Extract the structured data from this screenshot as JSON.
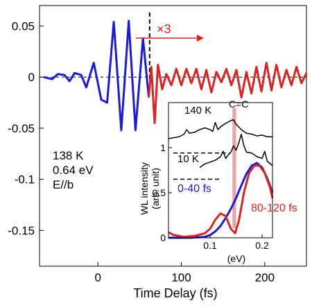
{
  "chart_data": [
    {
      "id": "main",
      "type": "line",
      "xlabel": "Time Delay (fs)",
      "ylabel": "",
      "xlim": [
        -70,
        250
      ],
      "ylim": [
        -0.185,
        0.07
      ],
      "xticks": [
        0,
        100,
        200
      ],
      "yticks": [
        0.05,
        0,
        -0.05,
        -0.1,
        -0.15
      ],
      "ytick_labels": [
        "0.05",
        "0",
        "-0.05",
        "-0.1",
        "-0.15"
      ],
      "zero_line": "dashed",
      "divider_x": 62,
      "divider_style": "dashed",
      "scale_label": "×3",
      "annotation_lines": [
        "138 K",
        "0.64 eV",
        "E//b"
      ],
      "colors": {
        "blue": "#1a1adc",
        "red": "#dd2222",
        "black": "#000000"
      },
      "series": [
        {
          "color": "blue",
          "points": [
            [
              -65,
              0
            ],
            [
              -55,
              -0.002
            ],
            [
              -48,
              0.003
            ],
            [
              -40,
              0.002
            ],
            [
              -34,
              -0.004
            ],
            [
              -28,
              0.004
            ],
            [
              -20,
              0.002
            ],
            [
              -14,
              -0.01
            ],
            [
              -5,
              0.014
            ],
            [
              4,
              -0.022
            ],
            [
              11,
              -0.025
            ],
            [
              19,
              0.054
            ],
            [
              28,
              -0.052
            ],
            [
              37,
              0.055
            ],
            [
              45,
              -0.052
            ],
            [
              54,
              0.038
            ],
            [
              61,
              -0.02
            ]
          ]
        },
        {
          "color": "red",
          "points": [
            [
              61,
              -0.02
            ],
            [
              64,
              0.01
            ],
            [
              68,
              -0.045
            ],
            [
              72,
              0.012
            ],
            [
              77,
              -0.012
            ],
            [
              82,
              0.003
            ],
            [
              88,
              -0.008
            ],
            [
              94,
              0.008
            ],
            [
              100,
              -0.008
            ],
            [
              106,
              0.008
            ],
            [
              112,
              -0.006
            ],
            [
              118,
              0.008
            ],
            [
              124,
              -0.012
            ],
            [
              130,
              0.007
            ],
            [
              136,
              -0.015
            ],
            [
              142,
              0.005
            ],
            [
              148,
              -0.005
            ],
            [
              154,
              0.008
            ],
            [
              160,
              -0.008
            ],
            [
              166,
              0.007
            ],
            [
              172,
              -0.02
            ],
            [
              178,
              0.005
            ],
            [
              184,
              -0.016
            ],
            [
              190,
              0.01
            ],
            [
              196,
              -0.014
            ],
            [
              202,
              0.014
            ],
            [
              208,
              -0.013
            ],
            [
              214,
              0.012
            ],
            [
              220,
              -0.01
            ],
            [
              226,
              0.007
            ],
            [
              232,
              -0.008
            ],
            [
              238,
              0.01
            ],
            [
              244,
              -0.006
            ],
            [
              250,
              0.004
            ]
          ]
        }
      ]
    },
    {
      "id": "inset",
      "type": "line",
      "xlabel": "(eV)",
      "ylabel_lines": [
        "WL intensity",
        "(arb. unit)"
      ],
      "xlim": [
        0.02,
        0.22
      ],
      "ylim": [
        0,
        1.5
      ],
      "xticks": [
        0.1,
        0.2
      ],
      "yticks": [
        0,
        0.5,
        1
      ],
      "ytick_labels": [
        "0",
        "0.5",
        "1"
      ],
      "highlight_x": [
        0.143,
        0.15
      ],
      "highlight_label": "C=C",
      "dashed_refs": [
        0.94,
        0.65
      ],
      "labels": [
        {
          "text": "140 K",
          "color": "black"
        },
        {
          "text": "10 K",
          "color": "black"
        },
        {
          "text": "0-40 fs",
          "color": "blue"
        },
        {
          "text": "80-120 fs",
          "color": "red"
        }
      ],
      "series": [
        {
          "name": "140 K",
          "color": "black",
          "points": [
            [
              0.02,
              1.1
            ],
            [
              0.04,
              1.12
            ],
            [
              0.05,
              1.15
            ],
            [
              0.055,
              1.2
            ],
            [
              0.06,
              1.16
            ],
            [
              0.07,
              1.17
            ],
            [
              0.08,
              1.2
            ],
            [
              0.09,
              1.22
            ],
            [
              0.1,
              1.2
            ],
            [
              0.105,
              1.18
            ],
            [
              0.11,
              1.28
            ],
            [
              0.115,
              1.2
            ],
            [
              0.12,
              1.23
            ],
            [
              0.13,
              1.27
            ],
            [
              0.14,
              1.3
            ],
            [
              0.145,
              1.31
            ],
            [
              0.15,
              1.26
            ],
            [
              0.16,
              1.2
            ],
            [
              0.17,
              1.16
            ],
            [
              0.18,
              1.15
            ],
            [
              0.19,
              1.13
            ],
            [
              0.2,
              1.14
            ],
            [
              0.21,
              1.12
            ],
            [
              0.22,
              1.12
            ]
          ]
        },
        {
          "name": "10 K",
          "color": "black",
          "points": [
            [
              0.08,
              0.78
            ],
            [
              0.09,
              0.82
            ],
            [
              0.1,
              0.84
            ],
            [
              0.11,
              0.86
            ],
            [
              0.12,
              0.9
            ],
            [
              0.125,
              0.96
            ],
            [
              0.13,
              0.88
            ],
            [
              0.135,
              0.92
            ],
            [
              0.14,
              0.95
            ],
            [
              0.145,
              1.02
            ],
            [
              0.15,
              0.97
            ],
            [
              0.155,
              1.05
            ],
            [
              0.16,
              1.15
            ],
            [
              0.165,
              1.02
            ],
            [
              0.17,
              0.95
            ],
            [
              0.18,
              0.94
            ],
            [
              0.19,
              0.9
            ],
            [
              0.2,
              0.88
            ],
            [
              0.205,
              0.96
            ],
            [
              0.21,
              0.85
            ],
            [
              0.22,
              0.8
            ]
          ]
        },
        {
          "name": "0-40 fs",
          "color": "blue",
          "points": [
            [
              0.02,
              0
            ],
            [
              0.06,
              0
            ],
            [
              0.09,
              0.01
            ],
            [
              0.1,
              0.03
            ],
            [
              0.11,
              0.07
            ],
            [
              0.12,
              0.13
            ],
            [
              0.13,
              0.22
            ],
            [
              0.14,
              0.32
            ],
            [
              0.15,
              0.44
            ],
            [
              0.16,
              0.58
            ],
            [
              0.17,
              0.71
            ],
            [
              0.18,
              0.8
            ],
            [
              0.19,
              0.83
            ],
            [
              0.2,
              0.78
            ],
            [
              0.21,
              0.66
            ],
            [
              0.22,
              0.5
            ]
          ]
        },
        {
          "name": "80-120 fs",
          "color": "red",
          "points": [
            [
              0.02,
              0.06
            ],
            [
              0.03,
              0.03
            ],
            [
              0.05,
              0.01
            ],
            [
              0.07,
              0.02
            ],
            [
              0.09,
              0.05
            ],
            [
              0.1,
              0.1
            ],
            [
              0.11,
              0.2
            ],
            [
              0.12,
              0.27
            ],
            [
              0.13,
              0.24
            ],
            [
              0.14,
              0.1
            ],
            [
              0.148,
              0.05
            ],
            [
              0.155,
              0.18
            ],
            [
              0.165,
              0.5
            ],
            [
              0.175,
              0.72
            ],
            [
              0.185,
              0.8
            ],
            [
              0.195,
              0.8
            ],
            [
              0.205,
              0.72
            ],
            [
              0.215,
              0.56
            ],
            [
              0.22,
              0.44
            ]
          ]
        }
      ]
    }
  ]
}
